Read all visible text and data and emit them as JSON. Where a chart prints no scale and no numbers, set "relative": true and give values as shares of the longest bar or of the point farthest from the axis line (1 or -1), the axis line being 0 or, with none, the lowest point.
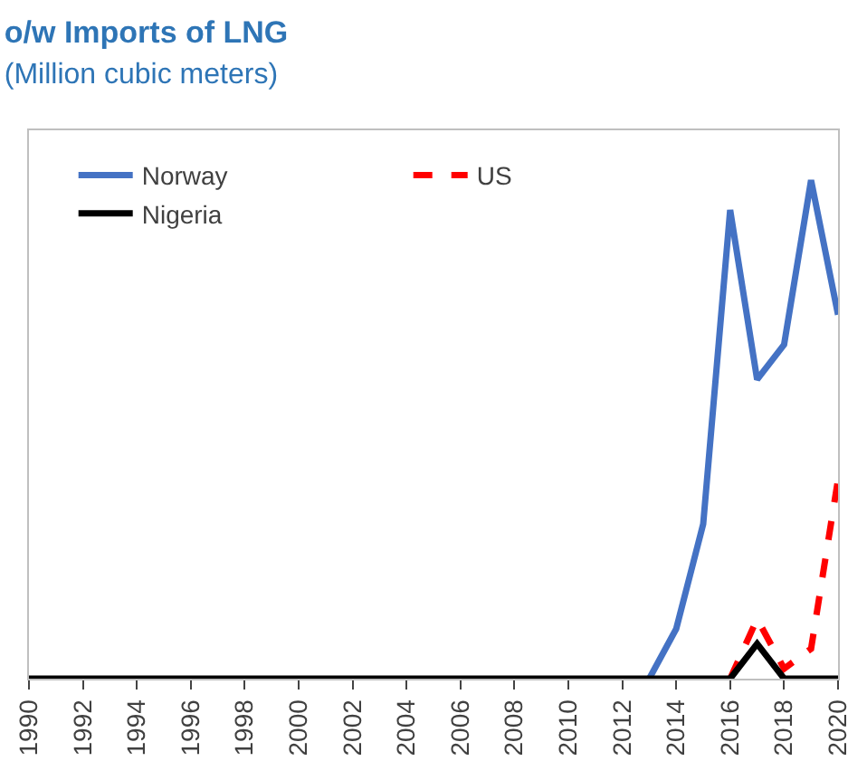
{
  "chart_data": {
    "type": "line",
    "title": "o/w Imports of LNG",
    "subtitle": "(Million cubic meters)",
    "relative": true,
    "x": [
      1990,
      1991,
      1992,
      1993,
      1994,
      1995,
      1996,
      1997,
      1998,
      1999,
      2000,
      2001,
      2002,
      2003,
      2004,
      2005,
      2006,
      2007,
      2008,
      2009,
      2010,
      2011,
      2012,
      2013,
      2014,
      2015,
      2016,
      2017,
      2018,
      2019,
      2020
    ],
    "xlim": [
      1990,
      2020
    ],
    "xticks": [
      1990,
      1992,
      1994,
      1996,
      1998,
      2000,
      2002,
      2004,
      2006,
      2008,
      2010,
      2012,
      2014,
      2016,
      2018,
      2020
    ],
    "series": [
      {
        "name": "Norway",
        "color": "#4472c4",
        "line_style": "solid",
        "values": [
          null,
          null,
          null,
          null,
          null,
          null,
          null,
          null,
          null,
          null,
          null,
          null,
          null,
          null,
          null,
          null,
          null,
          null,
          null,
          null,
          null,
          null,
          null,
          0,
          0.1,
          0.31,
          0.94,
          0.6,
          0.67,
          1.0,
          0.73
        ]
      },
      {
        "name": "US",
        "color": "#ff0000",
        "line_style": "dashed",
        "values": [
          null,
          null,
          null,
          null,
          null,
          null,
          null,
          null,
          null,
          null,
          null,
          null,
          null,
          null,
          null,
          null,
          null,
          null,
          null,
          null,
          null,
          null,
          null,
          null,
          null,
          null,
          0,
          0.12,
          0.02,
          0.06,
          0.4
        ]
      },
      {
        "name": "Nigeria",
        "color": "#000000",
        "line_style": "solid",
        "values": [
          0,
          0,
          0,
          0,
          0,
          0,
          0,
          0,
          0,
          0,
          0,
          0,
          0,
          0,
          0,
          0,
          0,
          0,
          0,
          0,
          0,
          0,
          0,
          0,
          0,
          0,
          0,
          0.07,
          0,
          0,
          0
        ]
      }
    ],
    "legend": "top left",
    "marker": "none"
  }
}
